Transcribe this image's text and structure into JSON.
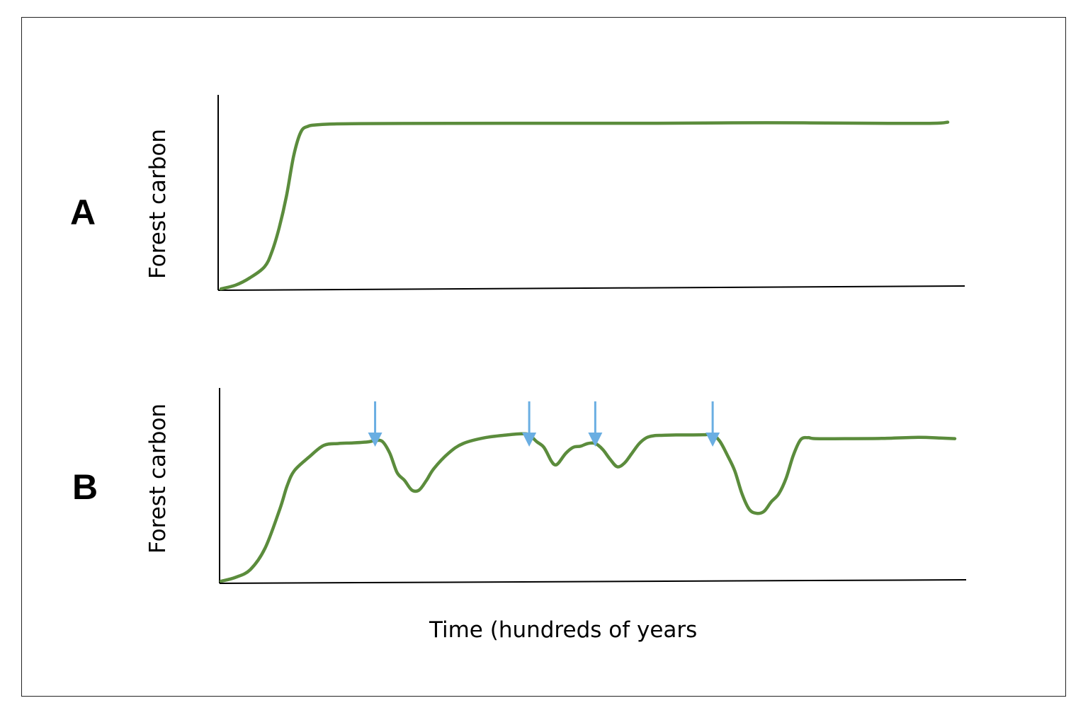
{
  "chart_data": [
    {
      "type": "line",
      "panel": "A",
      "ylabel": "Forest carbon",
      "xlabel": "",
      "ticks": "none",
      "series": [
        {
          "color": "#5b8c3c",
          "x": [
            0,
            2,
            4,
            6,
            7,
            8,
            9,
            10,
            11,
            12,
            13,
            15,
            18,
            25,
            40,
            60,
            75,
            90,
            98,
            100
          ],
          "y": [
            0,
            2,
            6,
            12,
            20,
            33,
            50,
            72,
            85,
            88,
            88.7,
            89.2,
            89.4,
            89.5,
            89.6,
            89.6,
            89.9,
            89.6,
            89.6,
            90.2
          ]
        }
      ]
    },
    {
      "type": "line",
      "panel": "B",
      "ylabel": "Forest carbon",
      "xlabel": "Time (hundreds of years",
      "ticks": "none",
      "series": [
        {
          "color": "#5b8c3c",
          "x": [
            0,
            2,
            4,
            6,
            8,
            9,
            10,
            12,
            14,
            16,
            18,
            20,
            21,
            22,
            23,
            24,
            25,
            26,
            27,
            28,
            29,
            31,
            33,
            36,
            39,
            41,
            42,
            43,
            44,
            45,
            45.5,
            46,
            47,
            48,
            49,
            50,
            51,
            52,
            53,
            54,
            55,
            56,
            57,
            58,
            59,
            60,
            62,
            64,
            66,
            67,
            68,
            69,
            70,
            71,
            72,
            73,
            74,
            75,
            76,
            77,
            78,
            79,
            80,
            81,
            85,
            90,
            95,
            98,
            100
          ],
          "y": [
            0,
            2,
            6,
            17,
            37,
            49,
            57,
            64,
            70,
            71,
            71.3,
            71.8,
            72.5,
            72,
            66,
            56,
            52,
            47,
            47,
            52,
            58,
            66,
            71,
            74,
            75.4,
            76,
            75.5,
            72,
            69,
            62,
            60,
            61,
            66,
            69,
            69.6,
            71,
            71,
            68,
            63,
            59,
            61,
            66,
            71,
            74,
            75,
            75.2,
            75.4,
            75.4,
            75.5,
            75.6,
            72,
            65,
            57,
            45,
            37,
            35,
            36,
            41,
            45,
            53,
            65,
            73,
            74,
            73.5,
            73.5,
            73.6,
            74.2,
            73.8,
            73.5
          ],
          "arrows_at_x": [
            21,
            42,
            51,
            67
          ]
        }
      ]
    }
  ],
  "colors": {
    "line": "#5b8c3c",
    "arrow": "#6aaee2",
    "axis": "#000000"
  }
}
